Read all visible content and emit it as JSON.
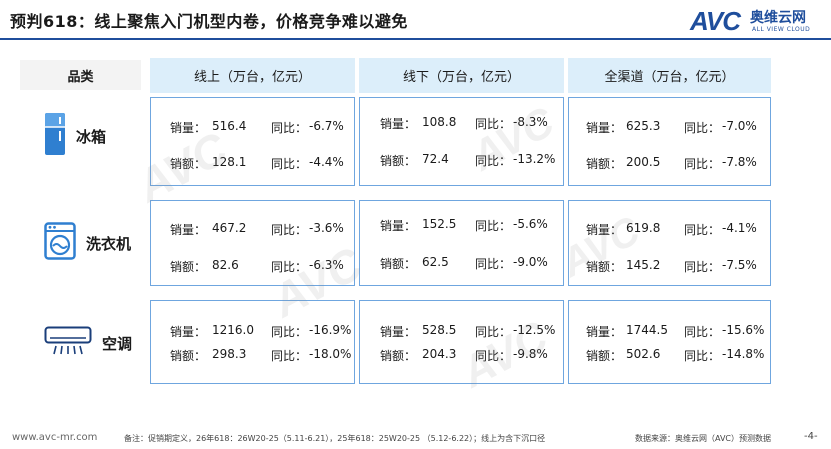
{
  "title": "预判618：线上聚焦入门机型内卷，价格竞争难以避免",
  "logo": {
    "mark": "AVC",
    "cn": "奥维云网",
    "en": "ALL VIEW CLOUD"
  },
  "table": {
    "category_header": "品类",
    "columns": [
      "线上（万台，亿元）",
      "线下（万台，亿元）",
      "全渠道（万台，亿元）"
    ],
    "rows": [
      {
        "name": "冰箱",
        "icon": "refrigerator-icon",
        "cells": [
          {
            "qty_label": "销量：",
            "qty": "516.4",
            "qty_yoy_label": "同比：",
            "qty_yoy": "-6.7%",
            "amt_label": "销额：",
            "amt": "128.1",
            "amt_yoy_label": "同比：",
            "amt_yoy": "-4.4%"
          },
          {
            "qty_label": "销量：",
            "qty": "108.8",
            "qty_yoy_label": "同比：",
            "qty_yoy": "-8.3%",
            "amt_label": "销额：",
            "amt": "72.4",
            "amt_yoy_label": "同比：",
            "amt_yoy": "-13.2%"
          },
          {
            "qty_label": "销量：",
            "qty": "625.3",
            "qty_yoy_label": "同比：",
            "qty_yoy": "-7.0%",
            "amt_label": "销额：",
            "amt": "200.5",
            "amt_yoy_label": "同比：",
            "amt_yoy": "-7.8%"
          }
        ]
      },
      {
        "name": "洗衣机",
        "icon": "washing-machine-icon",
        "cells": [
          {
            "qty_label": "销量：",
            "qty": "467.2",
            "qty_yoy_label": "同比：",
            "qty_yoy": "-3.6%",
            "amt_label": "销额：",
            "amt": "82.6",
            "amt_yoy_label": "同比：",
            "amt_yoy": "-6.3%"
          },
          {
            "qty_label": "销量：",
            "qty": "152.5",
            "qty_yoy_label": "同比：",
            "qty_yoy": "-5.6%",
            "amt_label": "销额：",
            "amt": "62.5",
            "amt_yoy_label": "同比：",
            "amt_yoy": "-9.0%"
          },
          {
            "qty_label": "销量：",
            "qty": "619.8",
            "qty_yoy_label": "同比：",
            "qty_yoy": "-4.1%",
            "amt_label": "销额：",
            "amt": "145.2",
            "amt_yoy_label": "同比：",
            "amt_yoy": "-7.5%"
          }
        ]
      },
      {
        "name": "空调",
        "icon": "air-conditioner-icon",
        "cells": [
          {
            "qty_label": "销量：",
            "qty": "1216.0",
            "qty_yoy_label": "同比：",
            "qty_yoy": "-16.9%",
            "amt_label": "销额：",
            "amt": "298.3",
            "amt_yoy_label": "同比：",
            "amt_yoy": "-18.0%"
          },
          {
            "qty_label": "销量：",
            "qty": "528.5",
            "qty_yoy_label": "同比：",
            "qty_yoy": "-12.5%",
            "amt_label": "销额：",
            "amt": "204.3",
            "amt_yoy_label": "同比：",
            "amt_yoy": "-9.8%"
          },
          {
            "qty_label": "销量：",
            "qty": "1744.5",
            "qty_yoy_label": "同比：",
            "qty_yoy": "-15.6%",
            "amt_label": "销额：",
            "amt": "502.6",
            "amt_yoy_label": "同比：",
            "amt_yoy": "-14.8%"
          }
        ]
      }
    ]
  },
  "footer": {
    "website": "www.avc-mr.com",
    "note": "备注：促销期定义，26年618：26W20-25（5.11-6.21），25年618：25W20-25 （5.12-6.22）；线上为含下沉口径",
    "source": "数据来源：奥维云网（AVC）预测数据",
    "page": "-4-"
  },
  "colors": {
    "brand": "#1f4e9c",
    "header_bg": "#dceefa",
    "cell_border": "#6fa6df",
    "category_bg": "#f3f3f3"
  }
}
